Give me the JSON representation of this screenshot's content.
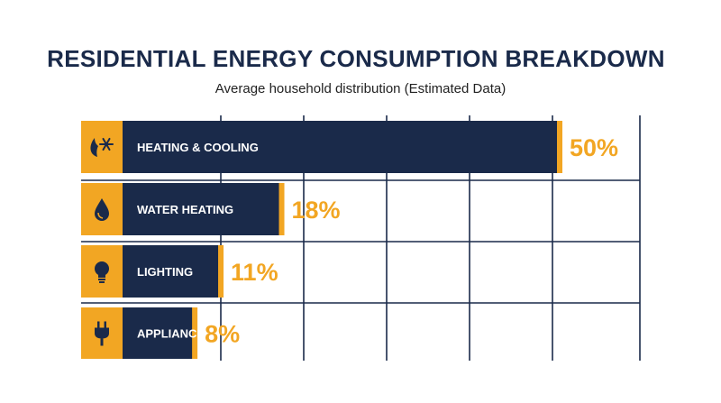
{
  "title": "RESIDENTIAL ENERGY CONSUMPTION BREAKDOWN",
  "subtitle": "Average household distribution (Estimated Data)",
  "colors": {
    "bar": "#1a2a4a",
    "accent": "#f2a623",
    "grid": "#1a2a4a"
  },
  "chart_data": {
    "type": "bar",
    "orientation": "horizontal",
    "categories": [
      "HEATING & COOLING",
      "WATER HEATING",
      "LIGHTING",
      "APPLIANCES"
    ],
    "values": [
      50,
      18,
      11,
      8
    ],
    "value_labels": [
      "50%",
      "18%",
      "11%",
      "8%"
    ],
    "icons": [
      "flame-snowflake-icon",
      "water-drop-icon",
      "light-bulb-icon",
      "plug-icon"
    ],
    "xlim": [
      0,
      65
    ],
    "grid": true
  }
}
